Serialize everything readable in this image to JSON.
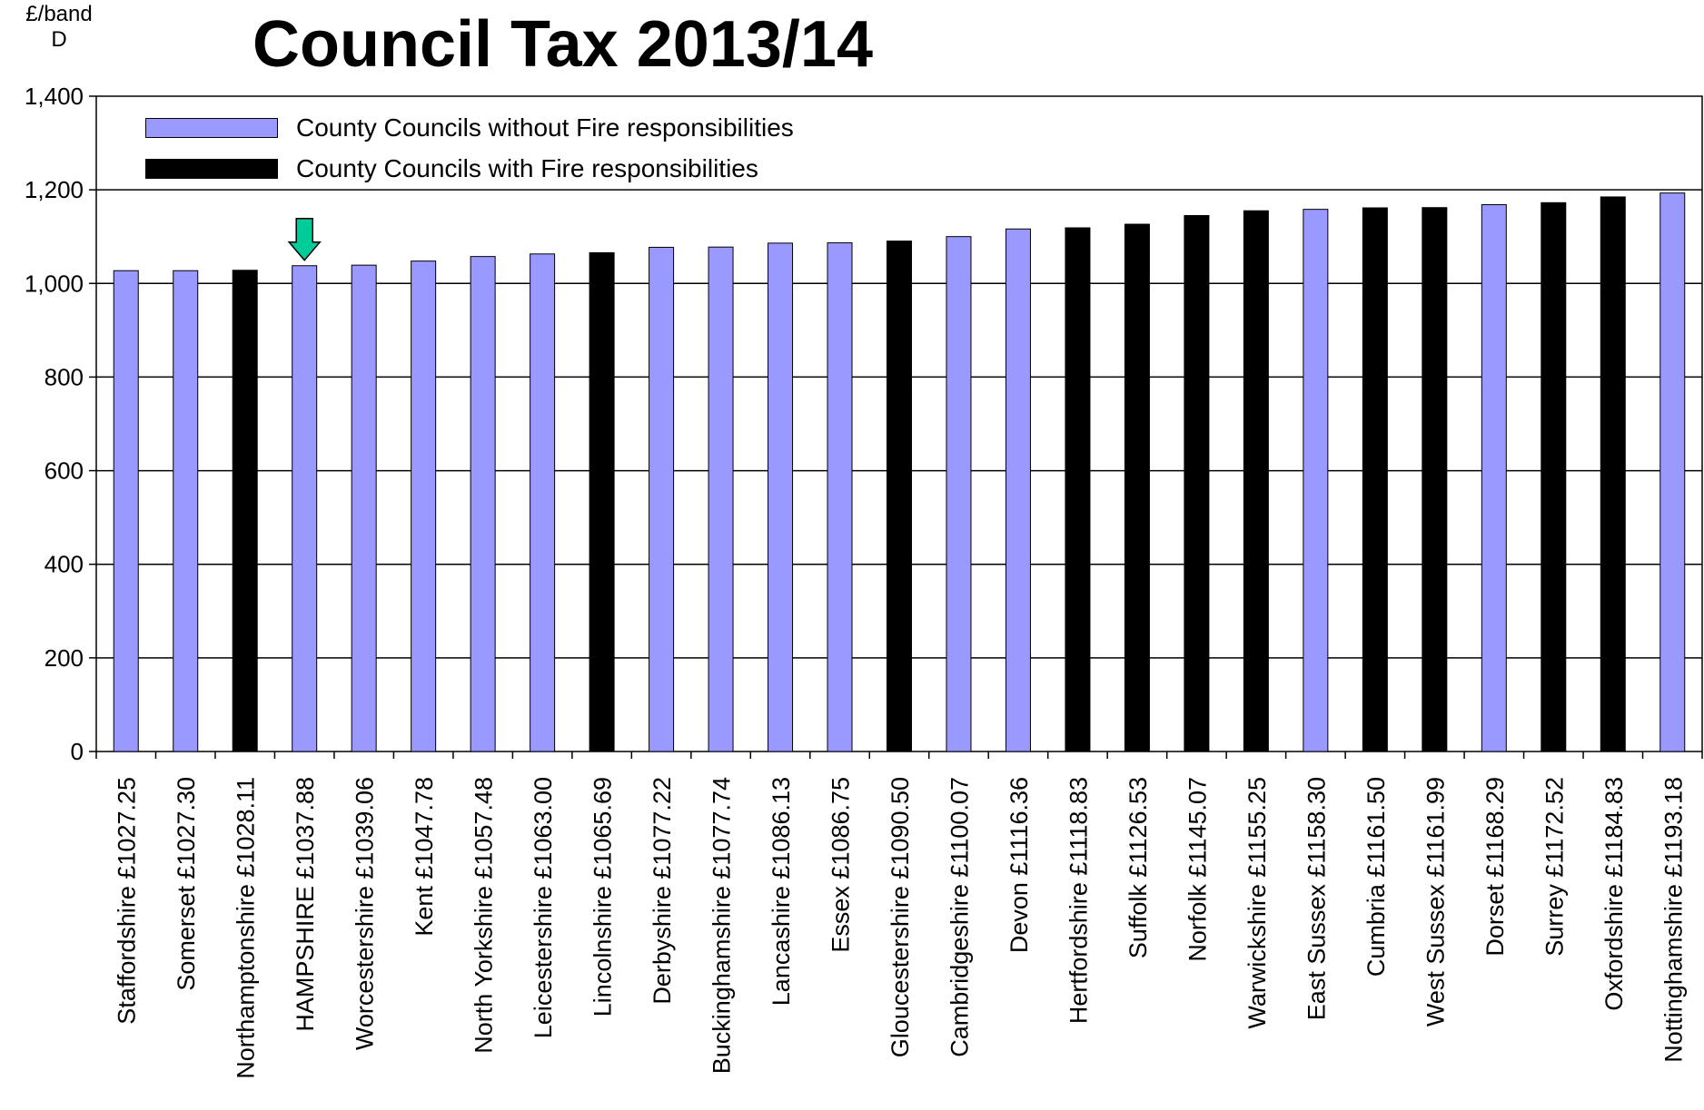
{
  "chart_data": {
    "type": "bar",
    "title": "Council Tax 2013/14",
    "ylabel": "£/band\nD",
    "xlabel": "",
    "ylim": [
      0,
      1400
    ],
    "yticks": [
      0,
      200,
      400,
      600,
      800,
      1000,
      1200,
      1400
    ],
    "ytick_labels": [
      "0",
      "200",
      "400",
      "600",
      "800",
      "1,000",
      "1,200",
      "1,400"
    ],
    "grid": "horizontal",
    "legend_position": "top-left",
    "colors": {
      "without_fire": "#9999FF",
      "with_fire": "#000000"
    },
    "highlight_arrow_color": "#00CC99",
    "legend": [
      {
        "key": "without_fire",
        "label": "County Councils without Fire responsibilities"
      },
      {
        "key": "with_fire",
        "label": "County Councils with Fire responsibilities"
      }
    ],
    "categories": [
      "Staffordshire £1027.25",
      "Somerset £1027.30",
      "Northamptonshire £1028.11",
      "HAMPSHIRE £1037.88",
      "Worcestershire £1039.06",
      "Kent £1047.78",
      "North Yorkshire £1057.48",
      "Leicestershire £1063.00",
      "Lincolnshire £1065.69",
      "Derbyshire £1077.22",
      "Buckinghamshire £1077.74",
      "Lancashire £1086.13",
      "Essex £1086.75",
      "Gloucestershire £1090.50",
      "Cambridgeshire £1100.07",
      "Devon £1116.36",
      "Hertfordshire £1118.83",
      "Suffolk £1126.53",
      "Norfolk £1145.07",
      "Warwickshire £1155.25",
      "East Sussex £1158.30",
      "Cumbria £1161.50",
      "West Sussex £1161.99",
      "Dorset £1168.29",
      "Surrey £1172.52",
      "Oxfordshire £1184.83",
      "Nottinghamshire £1193.18"
    ],
    "values": [
      1027.25,
      1027.3,
      1028.11,
      1037.88,
      1039.06,
      1047.78,
      1057.48,
      1063.0,
      1065.69,
      1077.22,
      1077.74,
      1086.13,
      1086.75,
      1090.5,
      1100.07,
      1116.36,
      1118.83,
      1126.53,
      1145.07,
      1155.25,
      1158.3,
      1161.5,
      1161.99,
      1168.29,
      1172.52,
      1184.83,
      1193.18
    ],
    "fire_responsibility": [
      false,
      false,
      true,
      false,
      false,
      false,
      false,
      false,
      true,
      false,
      false,
      false,
      false,
      true,
      false,
      false,
      true,
      true,
      true,
      true,
      false,
      true,
      true,
      false,
      true,
      true,
      false
    ],
    "highlighted_index": 3
  }
}
